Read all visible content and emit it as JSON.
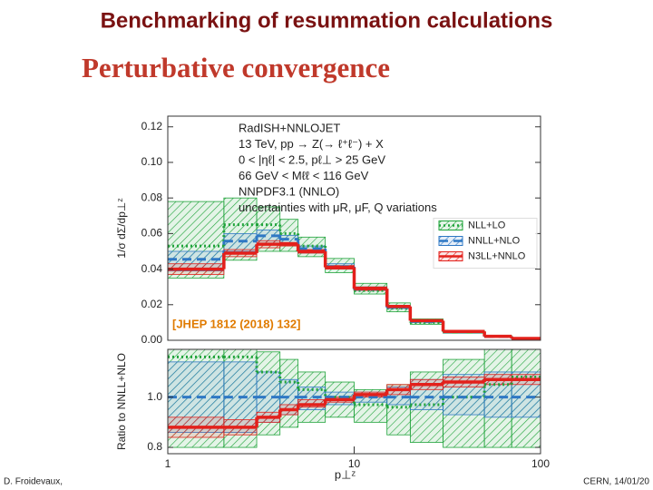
{
  "slide": {
    "title": "Benchmarking of resummation calculations",
    "subtitle": "Perturbative convergence",
    "footer_left": "D. Froidevaux,",
    "footer_right": "CERN, 14/01/20"
  },
  "chart_data": [
    {
      "type": "histogram",
      "xscale": "log",
      "xlim": [
        1,
        100
      ],
      "ylim": [
        0,
        0.126
      ],
      "yticks": [
        {
          "value": 0,
          "label": "0.00"
        },
        0.02,
        0.04,
        0.06,
        0.08,
        {
          "value": 0.1,
          "label": "0.10"
        },
        0.12
      ],
      "ylabel": "1/σ dΣ/dp⊥ᶻ",
      "legend": "center right",
      "annotations": [
        "RadISH+NNLOJET",
        "13 TeV, pp → Z(→ ℓ⁺ℓ⁻) + X",
        "0 < |ηℓ| < 2.5, pℓ⊥ > 25 GeV",
        "66 GeV < Mℓℓ < 116 GeV",
        "NNPDF3.1 (NNLO)",
        "uncertainties with μR, μF, Q variations"
      ],
      "citation": "[JHEP 1812 (2018) 132]",
      "bins": [
        1,
        2,
        3,
        4,
        5,
        7,
        10,
        15,
        20,
        30,
        50,
        70,
        100
      ],
      "series": [
        {
          "name": "NLL+LO",
          "color": "#1fa33a",
          "line": "dotted",
          "values": [
            0.053,
            0.065,
            0.065,
            0.06,
            0.053,
            0.041,
            0.028,
            0.018,
            0.01,
            0.0047,
            0.0022,
            0.001
          ],
          "lower": [
            0.035,
            0.045,
            0.05,
            0.05,
            0.047,
            0.038,
            0.026,
            0.016,
            0.009,
            0.004,
            0.0018,
            0.0008
          ],
          "upper": [
            0.078,
            0.08,
            0.075,
            0.068,
            0.058,
            0.046,
            0.032,
            0.021,
            0.012,
            0.0056,
            0.0027,
            0.0013
          ]
        },
        {
          "name": "NNLL+NLO",
          "color": "#2f78c4",
          "line": "dashed",
          "values": [
            0.0455,
            0.0557,
            0.0587,
            0.0568,
            0.0515,
            0.0414,
            0.0287,
            0.0184,
            0.0105,
            0.0047,
            0.0021,
            0.0009
          ],
          "lower": [
            0.039,
            0.05,
            0.054,
            0.053,
            0.049,
            0.04,
            0.028,
            0.018,
            0.0102,
            0.0046,
            0.002,
            0.0009
          ],
          "upper": [
            0.05,
            0.06,
            0.062,
            0.059,
            0.053,
            0.043,
            0.03,
            0.0194,
            0.011,
            0.005,
            0.0023,
            0.001
          ]
        },
        {
          "name": "N3LL+NNLO",
          "color": "#e3201b",
          "line": "solid",
          "values": [
            0.04,
            0.049,
            0.054,
            0.054,
            0.05,
            0.041,
            0.029,
            0.019,
            0.011,
            0.005,
            0.0022,
            0.001
          ],
          "lower": [
            0.037,
            0.047,
            0.052,
            0.053,
            0.049,
            0.04,
            0.028,
            0.0185,
            0.0107,
            0.0048,
            0.0021,
            0.0009
          ],
          "upper": [
            0.043,
            0.051,
            0.056,
            0.055,
            0.051,
            0.042,
            0.03,
            0.0196,
            0.0113,
            0.0052,
            0.0023,
            0.0011
          ]
        }
      ]
    },
    {
      "type": "histogram",
      "xscale": "log",
      "xlim": [
        1,
        100
      ],
      "xticks": [
        1,
        10,
        100
      ],
      "xlabel": "p⊥ᶻ",
      "ylim": [
        0.775,
        1.19
      ],
      "yticks": [
        0.8,
        {
          "value": 1,
          "label": "1.0"
        }
      ],
      "ylabel": "Ratio to NNLL+NLO",
      "bins": [
        1,
        2,
        3,
        4,
        5,
        7,
        10,
        15,
        20,
        30,
        50,
        70,
        100
      ],
      "series": [
        {
          "color": "#1fa33a",
          "line": "dotted",
          "values": [
            1.16,
            1.16,
            1.1,
            1.06,
            1.03,
            1.0,
            0.97,
            0.96,
            0.97,
            1.0,
            1.05,
            1.08
          ],
          "lower": [
            0.8,
            0.8,
            0.85,
            0.88,
            0.9,
            0.92,
            0.9,
            0.85,
            0.82,
            0.8,
            0.8,
            0.8
          ],
          "upper": [
            1.19,
            1.19,
            1.18,
            1.15,
            1.1,
            1.06,
            1.03,
            1.05,
            1.1,
            1.15,
            1.19,
            1.19
          ]
        },
        {
          "color": "#2f78c4",
          "line": "dashed",
          "values": [
            1,
            1,
            1,
            1,
            1,
            1,
            1,
            1,
            1,
            1,
            1,
            1
          ],
          "lower": [
            0.86,
            0.86,
            0.9,
            0.93,
            0.95,
            0.97,
            0.98,
            0.97,
            0.95,
            0.93,
            0.92,
            0.92
          ],
          "upper": [
            1.14,
            1.14,
            1.1,
            1.07,
            1.04,
            1.02,
            1.02,
            1.04,
            1.07,
            1.09,
            1.1,
            1.1
          ]
        },
        {
          "color": "#e3201b",
          "line": "solid",
          "values": [
            0.88,
            0.88,
            0.92,
            0.95,
            0.97,
            0.99,
            1.01,
            1.03,
            1.05,
            1.06,
            1.07,
            1.07
          ],
          "lower": [
            0.84,
            0.85,
            0.9,
            0.93,
            0.96,
            0.98,
            1.0,
            1.01,
            1.03,
            1.04,
            1.05,
            1.05
          ],
          "upper": [
            0.92,
            0.91,
            0.94,
            0.97,
            0.99,
            1.0,
            1.02,
            1.05,
            1.07,
            1.08,
            1.09,
            1.09
          ]
        }
      ]
    }
  ]
}
